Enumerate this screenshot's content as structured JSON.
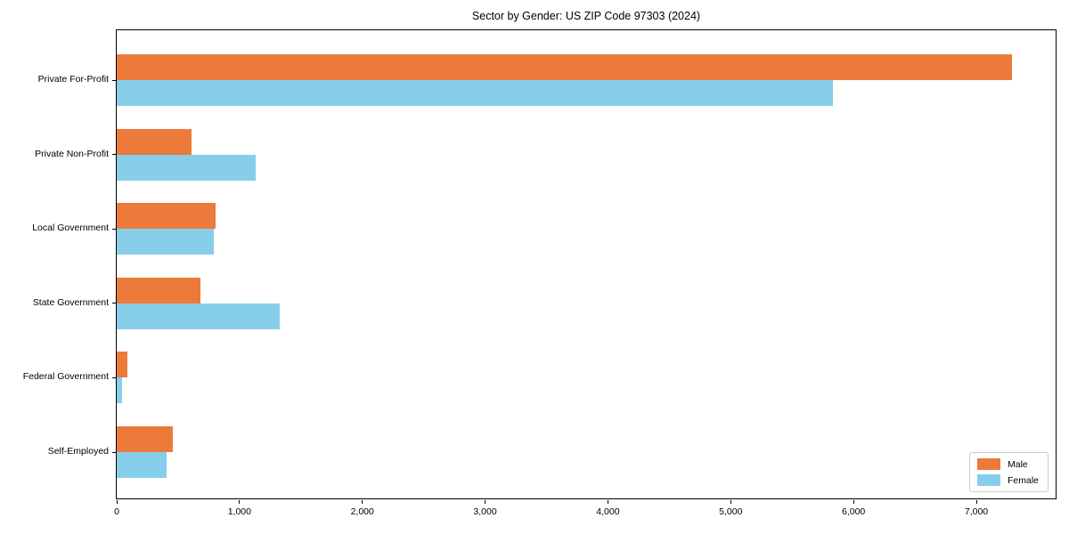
{
  "chart_data": {
    "type": "bar",
    "orientation": "horizontal",
    "title": "Sector by Gender: US ZIP Code 97303 (2024)",
    "categories": [
      "Private For-Profit",
      "Private Non-Profit",
      "Local Government",
      "State Government",
      "Federal Government",
      "Self-Employed"
    ],
    "series": [
      {
        "name": "Male",
        "color": "#EC7A3B",
        "values": [
          7290,
          610,
          805,
          680,
          90,
          455
        ]
      },
      {
        "name": "Female",
        "color": "#87CEEB",
        "values": [
          5830,
          1130,
          790,
          1330,
          45,
          405
        ]
      }
    ],
    "xlabel": "",
    "ylabel": "",
    "xlim": [
      0,
      7660
    ],
    "xticks": [
      0,
      1000,
      2000,
      3000,
      4000,
      5000,
      6000,
      7000
    ],
    "xtick_labels": [
      "0",
      "1,000",
      "2,000",
      "3,000",
      "4,000",
      "5,000",
      "6,000",
      "7,000"
    ],
    "grid": false,
    "legend_position": "lower right"
  }
}
